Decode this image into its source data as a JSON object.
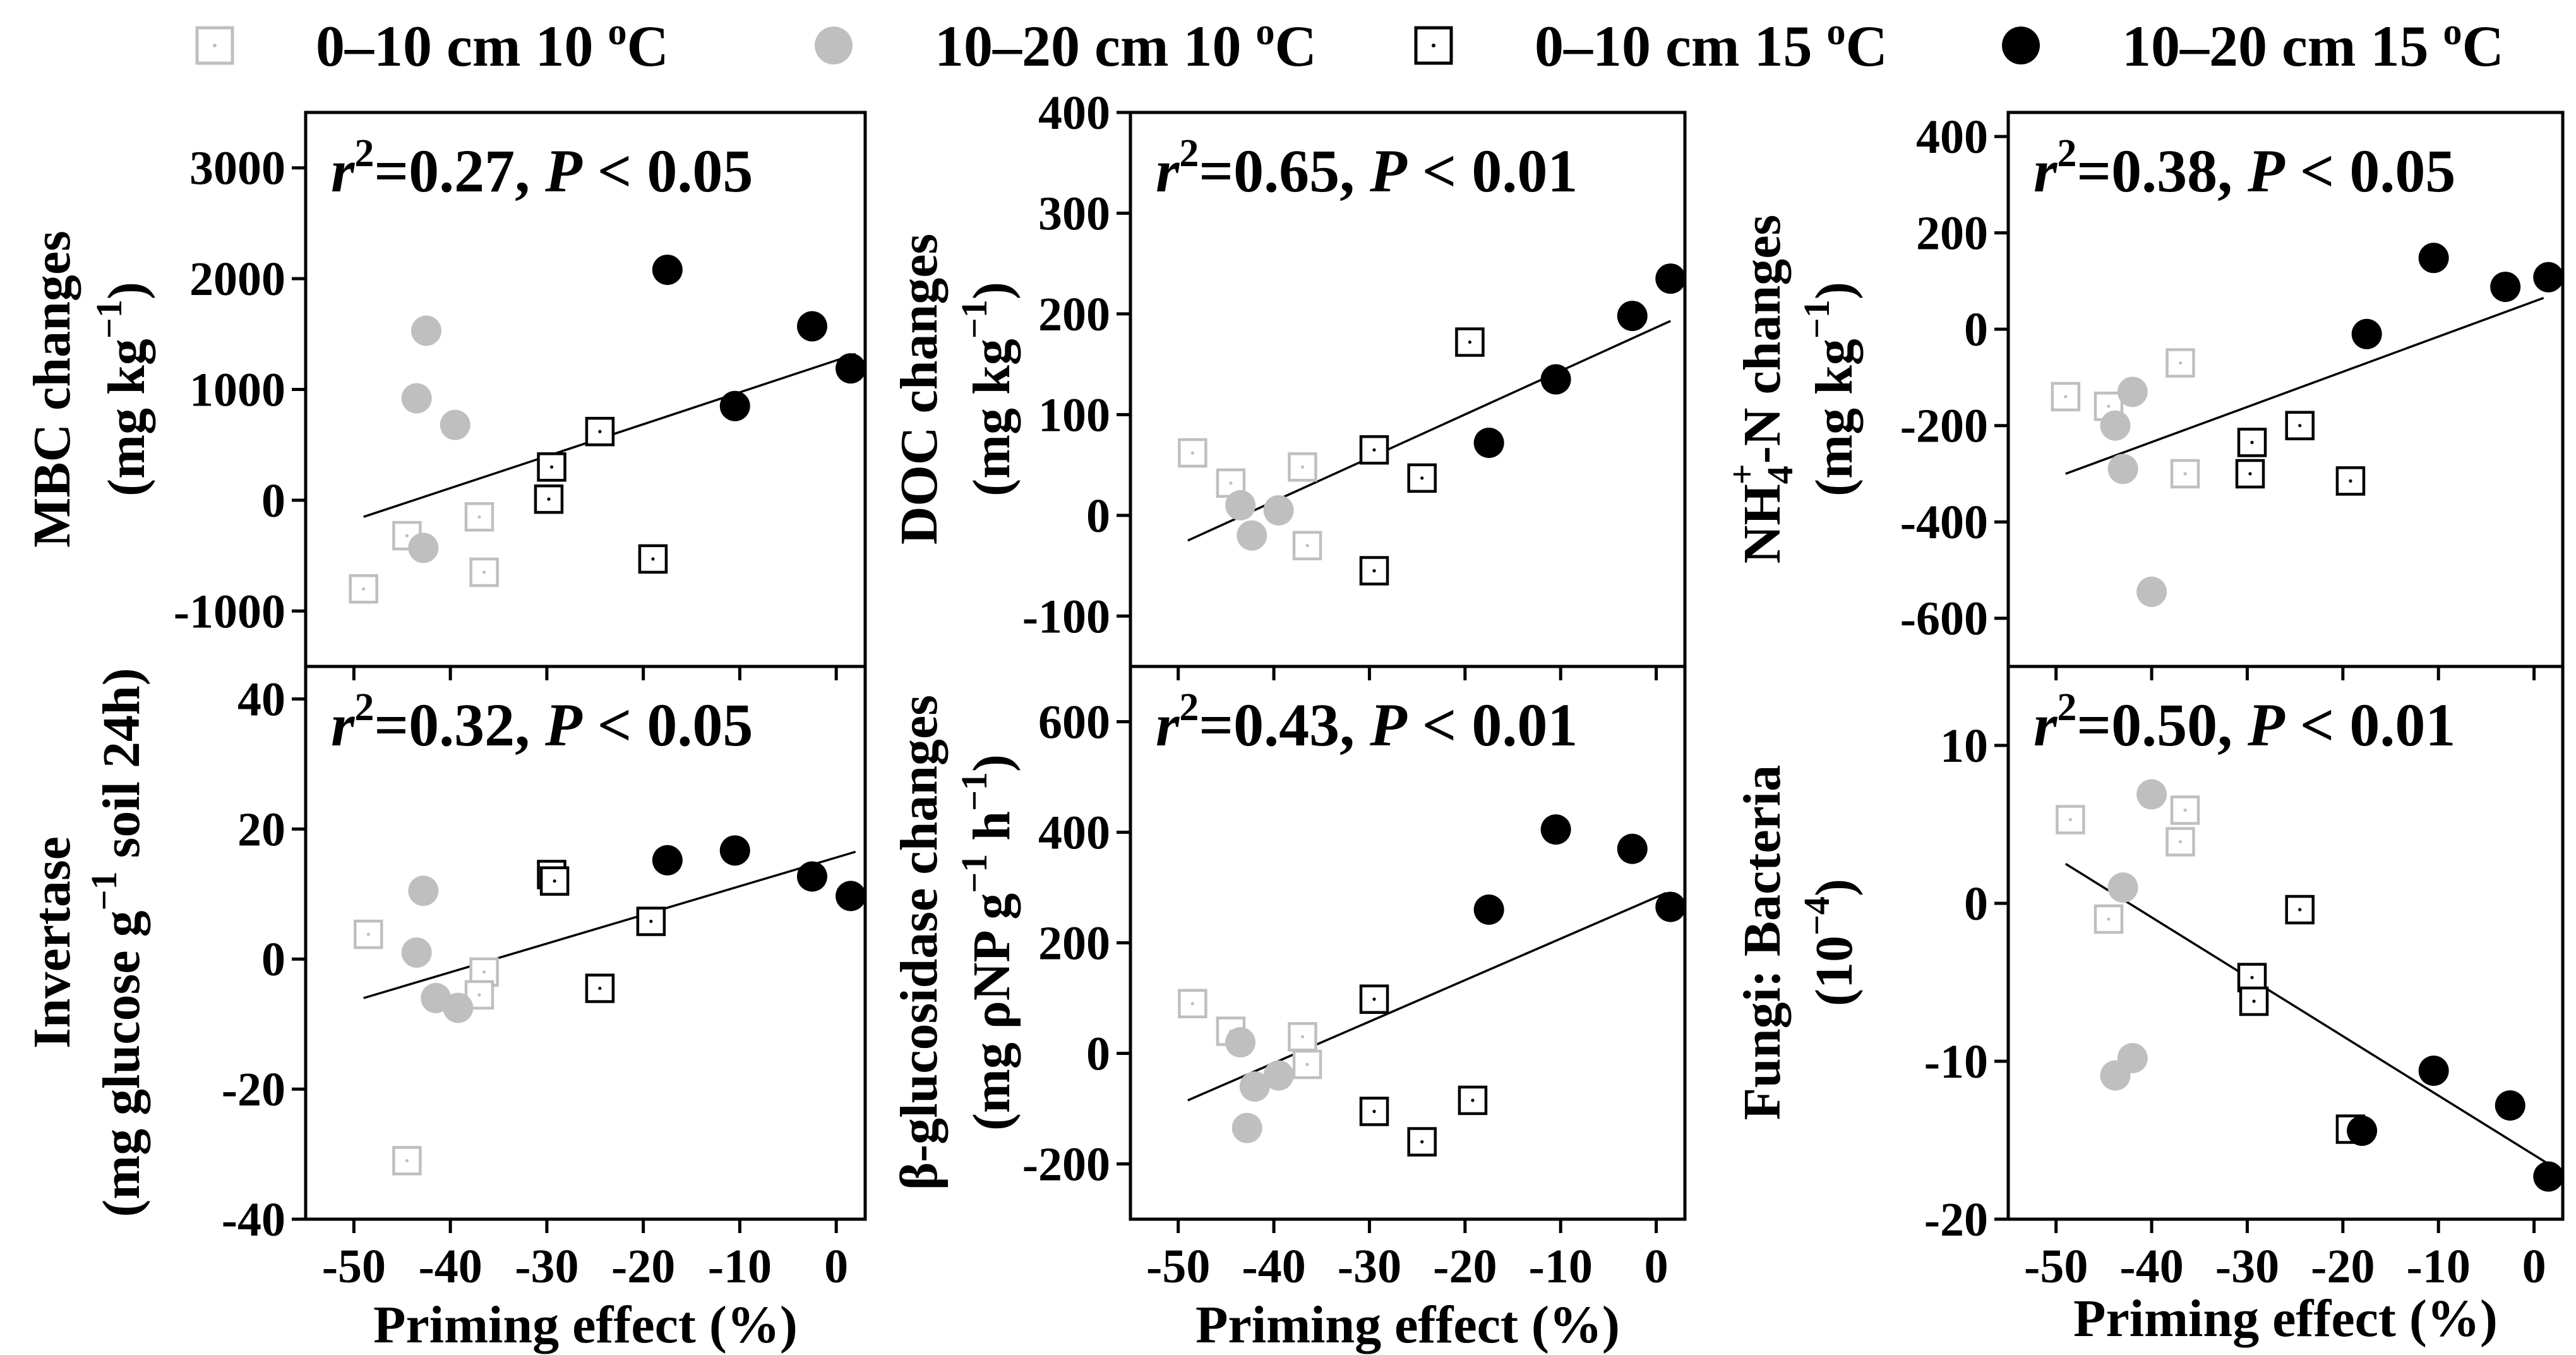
{
  "legend": [
    {
      "label": "0–10 cm 10 ",
      "sup": "o",
      "tail": "C",
      "marker": "open-square",
      "color": "#bfbfbf"
    },
    {
      "label": "10–20 cm 10 ",
      "sup": "o",
      "tail": "C",
      "marker": "filled-circle",
      "color": "#bfbfbf"
    },
    {
      "label": "0–10 cm 15 ",
      "sup": "o",
      "tail": "C",
      "marker": "open-square",
      "color": "#000000"
    },
    {
      "label": "10–20 cm 15 ",
      "sup": "o",
      "tail": "C",
      "marker": "filled-circle",
      "color": "#000000"
    }
  ],
  "chart_data": [
    {
      "type": "scatter",
      "id": "mbc",
      "ylabel": {
        "line1": "MBC changes",
        "line2": "(mg kg",
        "sup": "−1",
        "tail": ")"
      },
      "xlabel": "",
      "stat": {
        "r": "r",
        "sup": "2",
        "mid": "=0.27, ",
        "p": "P",
        "tail": " < 0.05"
      },
      "xlim": [
        -55,
        3
      ],
      "ylim": [
        -1500,
        3500
      ],
      "yticks": [
        -1000,
        0,
        1000,
        2000,
        3000
      ],
      "yticklabels": [
        "-1000",
        "0",
        "1000",
        "2000",
        "3000"
      ],
      "xticks": [
        -50,
        -40,
        -30,
        -20,
        -10,
        0
      ],
      "xticklabels": [],
      "fit": [
        [
          -49,
          -150
        ],
        [
          2,
          1320
        ]
      ],
      "series": [
        {
          "name": "0–10 cm 10 oC",
          "points": [
            [
              -49,
              -800
            ],
            [
              -44.5,
              -320
            ],
            [
              -37,
              -150
            ],
            [
              -36.5,
              -650
            ]
          ]
        },
        {
          "name": "10–20 cm 10 oC",
          "points": [
            [
              -43.5,
              920
            ],
            [
              -42.5,
              1530
            ],
            [
              -39.5,
              680
            ],
            [
              -42.8,
              -430
            ]
          ]
        },
        {
          "name": "0–10 cm 15 oC",
          "points": [
            [
              -29.5,
              300
            ],
            [
              -29.8,
              10
            ],
            [
              -24.5,
              620
            ],
            [
              -19,
              -530
            ]
          ]
        },
        {
          "name": "10–20 cm 15 oC",
          "points": [
            [
              -17.5,
              2080
            ],
            [
              -10.5,
              850
            ],
            [
              -2.5,
              1570
            ],
            [
              1.5,
              1190
            ]
          ]
        }
      ]
    },
    {
      "type": "scatter",
      "id": "doc",
      "ylabel": {
        "line1": "DOC changes",
        "line2": "(mg kg",
        "sup": "−1",
        "tail": ")"
      },
      "xlabel": "Priming effect (%)",
      "stat": {
        "r": "r",
        "sup": "2",
        "mid": "=0.65, ",
        "p": "P",
        "tail": " < 0.01"
      },
      "xlim": [
        -55,
        3
      ],
      "ylim": [
        -150,
        400
      ],
      "yticks": [
        -100,
        0,
        100,
        200,
        300,
        400
      ],
      "yticklabels": [
        "-100",
        "0",
        "100",
        "200",
        "300",
        "400"
      ],
      "xticks": [
        -50,
        -40,
        -30,
        -20,
        -10,
        0
      ],
      "xticklabels": [],
      "fit": [
        [
          -49,
          -25
        ],
        [
          1.5,
          193
        ]
      ],
      "series": [
        {
          "name": "0–10 cm 10 oC",
          "points": [
            [
              -48.5,
              62
            ],
            [
              -44.5,
              32
            ],
            [
              -37,
              48
            ],
            [
              -36.5,
              -30
            ]
          ]
        },
        {
          "name": "10–20 cm 10 oC",
          "points": [
            [
              -43.5,
              10
            ],
            [
              -42.3,
              -20
            ],
            [
              -39.5,
              5
            ]
          ]
        },
        {
          "name": "0–10 cm 15 oC",
          "points": [
            [
              -29.5,
              65
            ],
            [
              -29.5,
              -55
            ],
            [
              -24.5,
              37
            ],
            [
              -19.5,
              172
            ]
          ]
        },
        {
          "name": "10–20 cm 15 oC",
          "points": [
            [
              -17.5,
              72
            ],
            [
              -10.5,
              135
            ],
            [
              -2.5,
              198
            ],
            [
              1.5,
              235
            ]
          ]
        }
      ]
    },
    {
      "type": "scatter",
      "id": "nh4",
      "ylabel": {
        "line1": "NH",
        "sub": "4",
        "sup": "+",
        "line1tail": "-N  changes",
        "line2": "(mg kg",
        "sup2": "−1",
        "tail": ")"
      },
      "xlabel": "",
      "stat": {
        "r": "r",
        "sup": "2",
        "mid": "=0.38, ",
        "p": "P",
        "tail": " < 0.05"
      },
      "xlim": [
        -55,
        3
      ],
      "ylim": [
        -700,
        450
      ],
      "yticks": [
        -600,
        -400,
        -200,
        0,
        200,
        400
      ],
      "yticklabels": [
        "-600",
        "-400",
        "-200",
        "0",
        "200",
        "400"
      ],
      "xticks": [
        -50,
        -40,
        -30,
        -20,
        -10,
        0
      ],
      "xticklabels": [],
      "fit": [
        [
          -49,
          -300
        ],
        [
          1,
          65
        ]
      ],
      "series": [
        {
          "name": "0–10 cm 10 oC",
          "points": [
            [
              -49,
              -140
            ],
            [
              -44.5,
              -160
            ],
            [
              -37,
              -70
            ],
            [
              -36.5,
              -300
            ]
          ]
        },
        {
          "name": "10–20 cm 10 oC",
          "points": [
            [
              -43.8,
              -200
            ],
            [
              -43,
              -290
            ],
            [
              -42,
              -130
            ],
            [
              -40,
              -545
            ]
          ]
        },
        {
          "name": "0–10 cm 15 oC",
          "points": [
            [
              -29.5,
              -235
            ],
            [
              -29.7,
              -300
            ],
            [
              -24.5,
              -200
            ],
            [
              -19.2,
              -315
            ]
          ]
        },
        {
          "name": "10–20 cm 15 oC",
          "points": [
            [
              -17.5,
              -10
            ],
            [
              -10.5,
              148
            ],
            [
              -3,
              88
            ],
            [
              1.5,
              108
            ]
          ]
        }
      ]
    },
    {
      "type": "scatter",
      "id": "invertase",
      "ylabel": {
        "line1": "Invertase",
        "line2": "(mg glucose g",
        "sup": "−1",
        "tail": " soil 24h)"
      },
      "xlabel": "Priming effect (%)",
      "stat": {
        "r": "r",
        "sup": "2",
        "mid": "=0.32, ",
        "p": "P",
        "tail": " < 0.05"
      },
      "xlim": [
        -55,
        3
      ],
      "ylim": [
        -40,
        45
      ],
      "yticks": [
        -40,
        -20,
        0,
        20,
        40
      ],
      "yticklabels": [
        "-40",
        "-20",
        "0",
        "20",
        "40"
      ],
      "xticks": [
        -50,
        -40,
        -30,
        -20,
        -10,
        0
      ],
      "xticklabels": [
        "-50",
        "-40",
        "-30",
        "-20",
        "-10",
        "0"
      ],
      "fit": [
        [
          -49,
          -6
        ],
        [
          2,
          16.5
        ]
      ],
      "series": [
        {
          "name": "0–10 cm 10 oC",
          "points": [
            [
              -48.5,
              3.8
            ],
            [
              -44.5,
              -31
            ],
            [
              -36.5,
              -2
            ],
            [
              -37,
              -5.5
            ]
          ]
        },
        {
          "name": "10–20 cm 10 oC",
          "points": [
            [
              -43.5,
              1
            ],
            [
              -42.8,
              10.5
            ],
            [
              -41.5,
              -6
            ],
            [
              -39.2,
              -7.5
            ]
          ]
        },
        {
          "name": "0–10 cm 15 oC",
          "points": [
            [
              -29.5,
              13
            ],
            [
              -29.2,
              12
            ],
            [
              -24.5,
              -4.5
            ],
            [
              -19.2,
              5.8
            ]
          ]
        },
        {
          "name": "10–20 cm 15 oC",
          "points": [
            [
              -17.5,
              15.2
            ],
            [
              -10.5,
              16.7
            ],
            [
              -2.5,
              12.7
            ],
            [
              1.5,
              9.7
            ]
          ]
        }
      ]
    },
    {
      "type": "scatter",
      "id": "bglucosidase",
      "ylabel": {
        "line1": "β-glucosidase changes",
        "line2": "(mg ρNP g",
        "sup": "−1",
        "mid2": " h",
        "sup2": "−1",
        "tail": ")"
      },
      "xlabel": "Priming effect (%)",
      "stat": {
        "r": "r",
        "sup": "2",
        "mid": "=0.43, ",
        "p": "P",
        "tail": " < 0.01"
      },
      "xlim": [
        -55,
        3
      ],
      "ylim": [
        -300,
        700
      ],
      "yticks": [
        -200,
        0,
        200,
        400,
        600
      ],
      "yticklabels": [
        "-200",
        "0",
        "200",
        "400",
        "600"
      ],
      "xticks": [
        -50,
        -40,
        -30,
        -20,
        -10,
        0
      ],
      "xticklabels": [
        "-50",
        "-40",
        "-30",
        "-20",
        "-10",
        "0"
      ],
      "fit": [
        [
          -49,
          -85
        ],
        [
          1,
          290
        ]
      ],
      "series": [
        {
          "name": "0–10 cm 10 oC",
          "points": [
            [
              -48.5,
              90
            ],
            [
              -44.5,
              40
            ],
            [
              -37,
              30
            ],
            [
              -36.5,
              -20
            ]
          ]
        },
        {
          "name": "10–20 cm 10 oC",
          "points": [
            [
              -43.5,
              20
            ],
            [
              -42.8,
              -135
            ],
            [
              -42,
              -60
            ],
            [
              -39.5,
              -40
            ]
          ]
        },
        {
          "name": "0–10 cm 15 oC",
          "points": [
            [
              -29.5,
              98
            ],
            [
              -29.5,
              -105
            ],
            [
              -24.5,
              -160
            ],
            [
              -19.2,
              -85
            ]
          ]
        },
        {
          "name": "10–20 cm 15 oC",
          "points": [
            [
              -17.5,
              260
            ],
            [
              -10.5,
              405
            ],
            [
              -2.5,
              370
            ],
            [
              1.5,
              265
            ]
          ]
        }
      ]
    },
    {
      "type": "scatter",
      "id": "fungibacteria",
      "ylabel": {
        "line1": "Fungi: Bacteria",
        "line2": "(10",
        "sup": "−4",
        "tail": ")"
      },
      "xlabel": "Priming effect (%)",
      "stat": {
        "r": "r",
        "sup": "2",
        "mid": "=0.50, ",
        "p": "P",
        "tail": " < 0.01"
      },
      "xlim": [
        -55,
        3
      ],
      "ylim": [
        -20,
        15
      ],
      "yticks": [
        -20,
        -10,
        0,
        10
      ],
      "yticklabels": [
        "-20",
        "-10",
        "0",
        "10"
      ],
      "xticks": [
        -50,
        -40,
        -30,
        -20,
        -10,
        0
      ],
      "xticklabels": [
        "-50",
        "-40",
        "-30",
        "-20",
        "-10",
        "0"
      ],
      "fit": [
        [
          -49,
          2.5
        ],
        [
          1.5,
          -16.5
        ]
      ],
      "series": [
        {
          "name": "0–10 cm 10 oC",
          "points": [
            [
              -48.5,
              5.3
            ],
            [
              -44.5,
              -1
            ],
            [
              -37,
              3.9
            ],
            [
              -36.5,
              5.9
            ]
          ]
        },
        {
          "name": "10–20 cm 10 oC",
          "points": [
            [
              -43.8,
              -10.9
            ],
            [
              -43,
              1
            ],
            [
              -42,
              -9.8
            ],
            [
              -40,
              6.9
            ]
          ]
        },
        {
          "name": "0–10 cm 15 oC",
          "points": [
            [
              -29.5,
              -4.7
            ],
            [
              -29.3,
              -6.2
            ],
            [
              -24.5,
              -0.4
            ],
            [
              -19.2,
              -14.3
            ]
          ]
        },
        {
          "name": "10–20 cm 15 oC",
          "points": [
            [
              -18,
              -14.4
            ],
            [
              -10.5,
              -10.6
            ],
            [
              -2.5,
              -12.8
            ],
            [
              1.5,
              -17.3
            ]
          ]
        }
      ]
    }
  ]
}
